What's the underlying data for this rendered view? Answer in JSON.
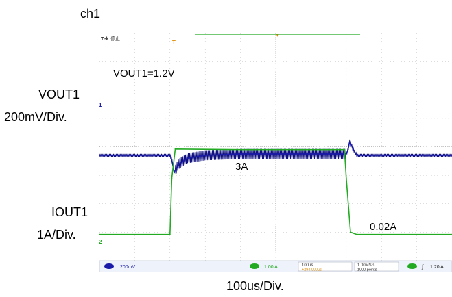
{
  "figure": {
    "channel_label": "ch1",
    "scope_brand": "Tek",
    "scope_state": "停止",
    "time_scale_caption": "100us/Div."
  },
  "scope_status": {
    "ch1_scale": "200mV",
    "ch2_scale": "1.00 A",
    "timebase": "100µs",
    "trigger_delay": "+294.000µs",
    "sample_rate": "1.00MS/s",
    "record_length": "1000 points",
    "trigger_level": "1.20 A",
    "ch1_marker": "1",
    "ch2_marker": "2",
    "trigger_marker": "T"
  },
  "colors": {
    "ch1": "#1a1aa8",
    "ch2": "#22aa22",
    "grid": "#b8b8b8",
    "trigger": "#e08a00"
  },
  "chart_data": {
    "type": "line",
    "title": "",
    "xlabel": "100us/Div.",
    "x_unit": "us",
    "xlim": [
      0,
      1000
    ],
    "series": [
      {
        "name": "VOUT1",
        "scale": "200mV/Div.",
        "annotation": "VOUT1=1.2V",
        "x": [
          0,
          200,
          205,
          212,
          225,
          250,
          300,
          400,
          500,
          700,
          705,
          710,
          718,
          730,
          760,
          1000
        ],
        "y": [
          1.2,
          1.2,
          1.17,
          1.08,
          1.14,
          1.18,
          1.2,
          1.21,
          1.21,
          1.21,
          1.24,
          1.3,
          1.25,
          1.2,
          1.2,
          1.2
        ]
      },
      {
        "name": "IOUT1",
        "scale": "1A/Div.",
        "annotations": [
          "3A",
          "0.02A"
        ],
        "x": [
          0,
          200,
          205,
          215,
          400,
          695,
          700,
          712,
          730,
          1000
        ],
        "y": [
          0.02,
          0.02,
          2.0,
          3.02,
          3.0,
          3.0,
          2.0,
          0.1,
          0.02,
          0.02
        ]
      }
    ]
  }
}
